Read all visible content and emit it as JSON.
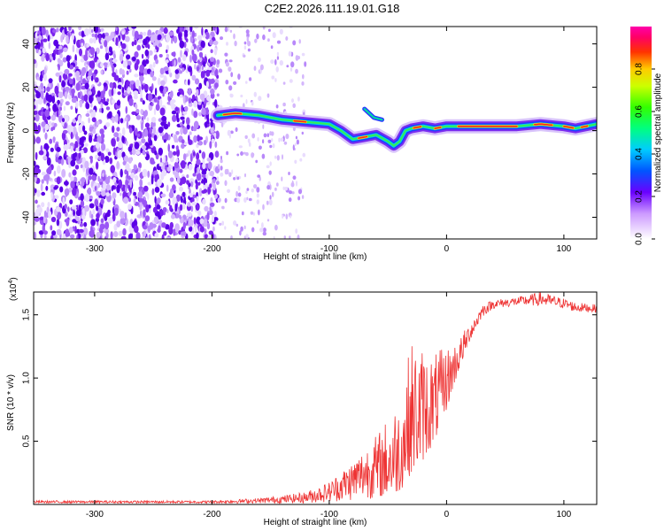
{
  "figure_title": "C2E2.2026.111.19.01.G18",
  "chart_data": [
    {
      "type": "heatmap",
      "name": "spectrogram",
      "title": "C2E2.2026.111.19.01.G18",
      "xlabel": "Height of straight line (km)",
      "ylabel": "Frequency (Hz)",
      "xlim": [
        -352,
        128
      ],
      "ylim": [
        -50,
        48
      ],
      "x_ticks": [
        -300,
        -200,
        -100,
        0,
        100
      ],
      "y_ticks": [
        -40,
        -20,
        0,
        20,
        40
      ],
      "colorbar": {
        "label": "Normalized spectral amplitude",
        "range": [
          0,
          1
        ],
        "ticks": [
          "0.0",
          "0.2",
          "0.4",
          "0.6",
          "0.8"
        ],
        "tick_values": [
          0.0,
          0.2,
          0.4,
          0.6,
          0.8
        ]
      },
      "noise_region_km": [
        -352,
        -195
      ],
      "sparse_noise_region_km": [
        -195,
        -120
      ],
      "signal_trace": {
        "x": [
          -195,
          -180,
          -160,
          -140,
          -120,
          -100,
          -90,
          -80,
          -70,
          -60,
          -50,
          -45,
          -40,
          -35,
          -30,
          -20,
          -10,
          0,
          20,
          40,
          60,
          80,
          100,
          110,
          128
        ],
        "y": [
          7,
          8,
          7,
          5,
          4,
          3,
          0,
          -4,
          -3,
          -2,
          -5,
          -7,
          -5,
          0,
          1,
          2,
          1,
          2,
          2,
          2,
          2,
          3,
          2,
          1,
          3
        ]
      },
      "secondary_trace": {
        "x": [
          -70,
          -62,
          -55
        ],
        "y": [
          10,
          6,
          5
        ]
      }
    },
    {
      "type": "line",
      "name": "snr",
      "title": "",
      "xlabel": "Height of straight line (km)",
      "ylabel": "SNR (10 * v/v)",
      "scale_label": "(x10",
      "scale_exponent": "4",
      "scale_close": ")",
      "xlim": [
        -352,
        128
      ],
      "ylim": [
        0,
        1.68
      ],
      "x_ticks": [
        -300,
        -200,
        -100,
        0,
        100
      ],
      "y_ticks": [
        "0.5",
        "1.0",
        "1.5"
      ],
      "y_tick_values": [
        0.5,
        1.0,
        1.5
      ],
      "color": "#ee3333",
      "envelope": {
        "x": [
          -352,
          -300,
          -250,
          -200,
          -160,
          -140,
          -120,
          -100,
          -80,
          -60,
          -40,
          -30,
          -20,
          -10,
          0,
          10,
          20,
          30,
          40,
          60,
          80,
          100,
          110,
          128
        ],
        "low": [
          0.01,
          0.01,
          0.01,
          0.01,
          0.01,
          0.01,
          0.01,
          0.02,
          0.03,
          0.05,
          0.1,
          0.25,
          0.35,
          0.5,
          0.75,
          1.05,
          1.3,
          1.48,
          1.55,
          1.57,
          1.57,
          1.55,
          1.52,
          1.52
        ],
        "high": [
          0.03,
          0.03,
          0.03,
          0.03,
          0.05,
          0.07,
          0.1,
          0.18,
          0.35,
          0.55,
          0.85,
          1.3,
          1.25,
          1.2,
          1.25,
          1.3,
          1.45,
          1.58,
          1.62,
          1.64,
          1.68,
          1.63,
          1.6,
          1.58
        ]
      }
    }
  ]
}
